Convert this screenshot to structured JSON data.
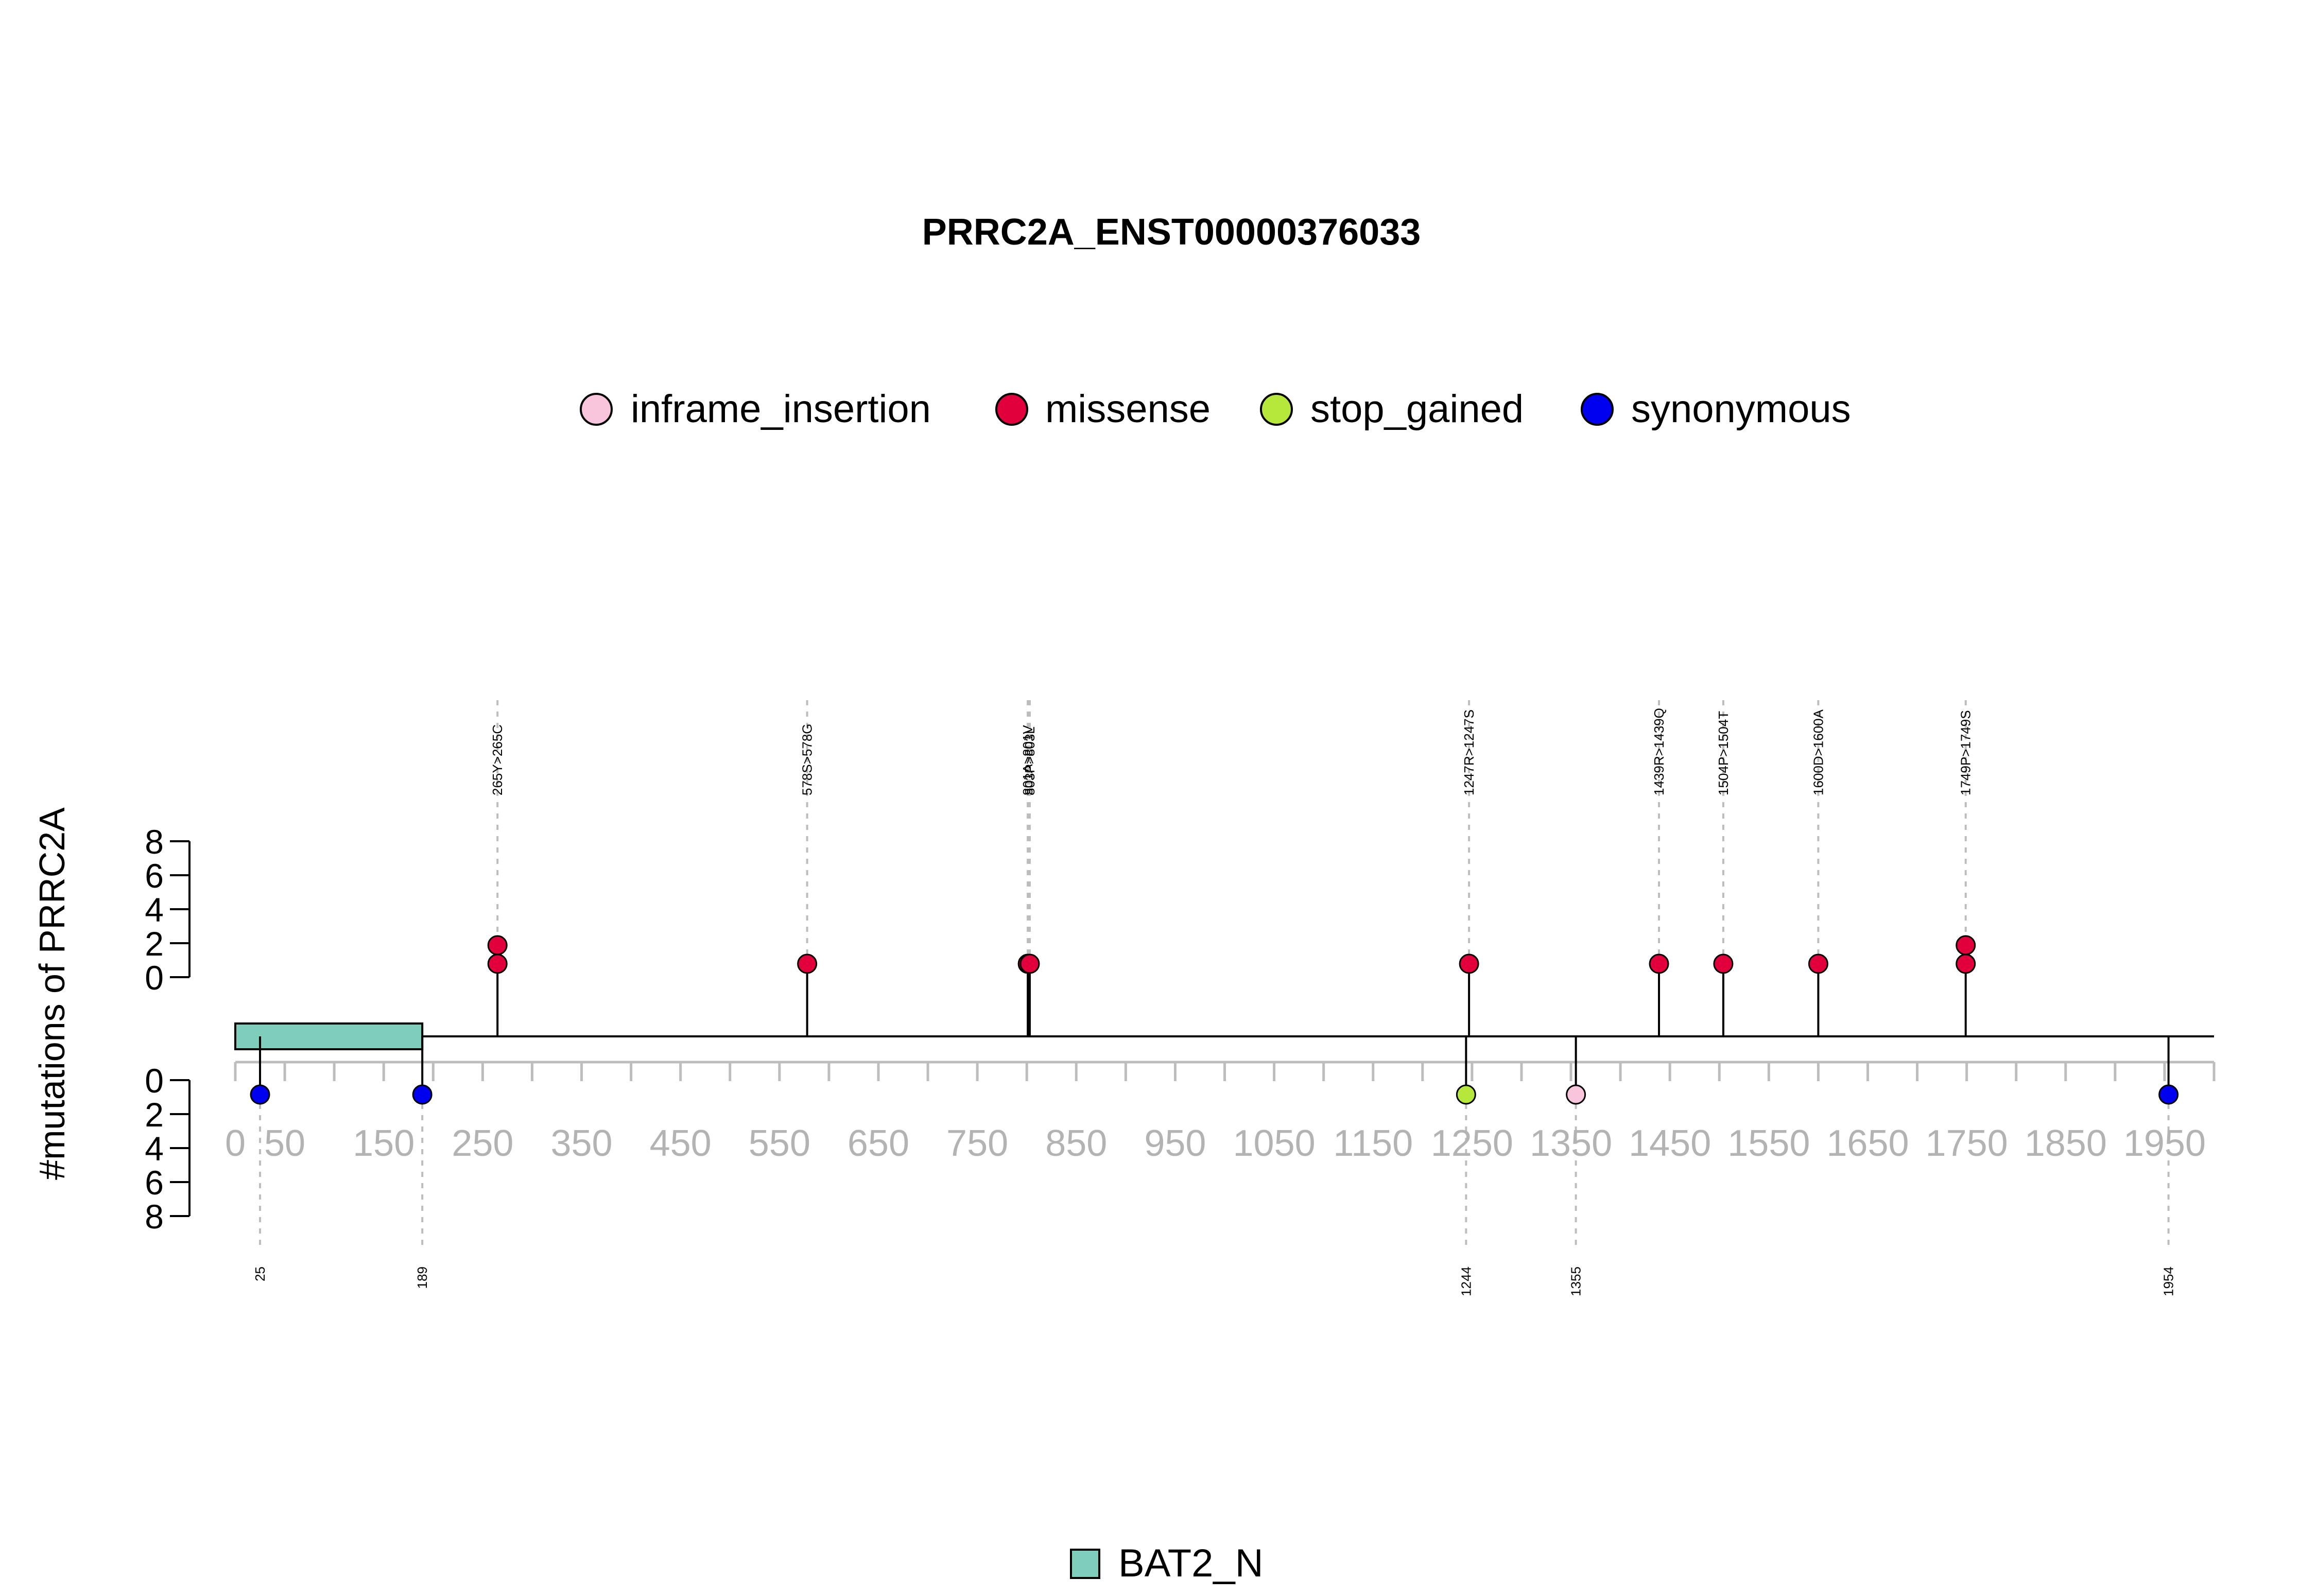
{
  "chart_data": {
    "type": "lollipop",
    "title": "PRRC2A_ENST00000376033",
    "ylabel": "#mutations of PRRC2A",
    "xlim": [
      0,
      2000
    ],
    "x_ticks": [
      0,
      50,
      150,
      250,
      350,
      450,
      550,
      650,
      750,
      850,
      950,
      1050,
      1150,
      1250,
      1350,
      1450,
      1550,
      1650,
      1750,
      1850,
      1950
    ],
    "x_tick_labels": [
      "0",
      "50",
      "150",
      "250",
      "350",
      "450",
      "550",
      "650",
      "750",
      "850",
      "950",
      "1050",
      "1150",
      "1250",
      "1350",
      "1450",
      "1550",
      "1650",
      "1750",
      "1850",
      "1950"
    ],
    "y_ticks_top": [
      0,
      2,
      4,
      6,
      8
    ],
    "y_ticks_bottom": [
      0,
      2,
      4,
      6,
      8
    ],
    "legend": [
      {
        "name": "inframe_insertion",
        "color": "#F9C5DC"
      },
      {
        "name": "missense",
        "color": "#E1003C"
      },
      {
        "name": "stop_gained",
        "color": "#B5E83A"
      },
      {
        "name": "synonymous",
        "color": "#0000F0"
      }
    ],
    "domains": [
      {
        "name": "BAT2_N",
        "start": 0,
        "end": 189,
        "color": "#7FCDBB"
      }
    ],
    "mutations_top": [
      {
        "pos": 265,
        "label": "265Y>265C",
        "count": 2,
        "type": "missense"
      },
      {
        "pos": 578,
        "label": "578S>578G",
        "count": 1,
        "type": "missense"
      },
      {
        "pos": 801,
        "label": "801A>801V",
        "count": 1,
        "type": "missense"
      },
      {
        "pos": 803,
        "label": "803P>803L",
        "count": 1,
        "type": "missense"
      },
      {
        "pos": 1247,
        "label": "1247R>1247S",
        "count": 1,
        "type": "missense"
      },
      {
        "pos": 1439,
        "label": "1439R>1439Q",
        "count": 1,
        "type": "missense"
      },
      {
        "pos": 1504,
        "label": "1504P>1504T",
        "count": 1,
        "type": "missense"
      },
      {
        "pos": 1600,
        "label": "1600D>1600A",
        "count": 1,
        "type": "missense"
      },
      {
        "pos": 1749,
        "label": "1749P>1749S",
        "count": 2,
        "type": "missense"
      }
    ],
    "mutations_bottom": [
      {
        "pos": 25,
        "label": "25",
        "count": 1,
        "type": "synonymous"
      },
      {
        "pos": 189,
        "label": "189",
        "count": 1,
        "type": "synonymous"
      },
      {
        "pos": 1244,
        "label": "1244",
        "count": 1,
        "type": "stop_gained"
      },
      {
        "pos": 1355,
        "label": "1355",
        "count": 1,
        "type": "inframe_insertion"
      },
      {
        "pos": 1954,
        "label": "1954",
        "count": 1,
        "type": "synonymous"
      }
    ]
  }
}
